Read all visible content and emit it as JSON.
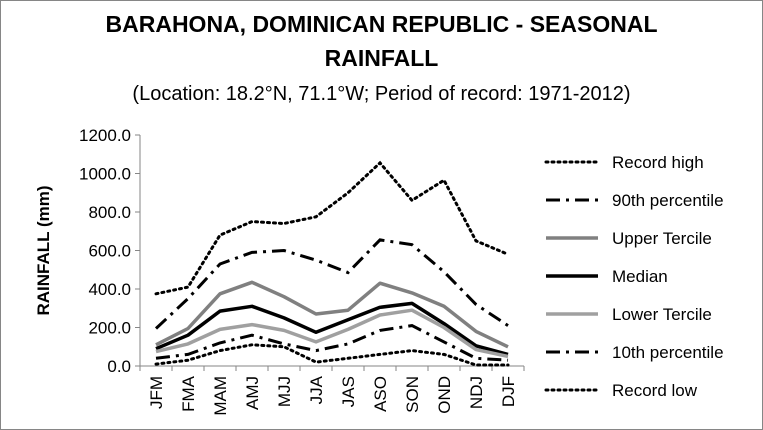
{
  "chart_data": {
    "type": "line",
    "title_lines": [
      "BARAHONA, DOMINICAN REPUBLIC - SEASONAL",
      "RAINFALL"
    ],
    "subtitle": "(Location: 18.2°N, 71.1°W; Period of record: 1971-2012)",
    "xlabel": "",
    "ylabel": "RAINFALL (mm)",
    "ylim": [
      0,
      1200
    ],
    "yticks": [
      "0.0",
      "200.0",
      "400.0",
      "600.0",
      "800.0",
      "1000.0",
      "1200.0"
    ],
    "grid": false,
    "legend_position": "right",
    "categories": [
      "JFM",
      "FMA",
      "MAM",
      "AMJ",
      "MJJ",
      "JJA",
      "JAS",
      "ASO",
      "SON",
      "OND",
      "NDJ",
      "DJF"
    ],
    "series": [
      {
        "name": "Record high",
        "style": "dotted",
        "color": "#000000",
        "values": [
          375,
          410,
          680,
          750,
          740,
          775,
          900,
          1055,
          860,
          965,
          650,
          580
        ]
      },
      {
        "name": "90th percentile",
        "style": "dash-dot",
        "color": "#000000",
        "values": [
          195,
          350,
          530,
          590,
          600,
          550,
          485,
          655,
          630,
          490,
          320,
          210
        ]
      },
      {
        "name": "Upper Tercile",
        "style": "solid",
        "color": "#808080",
        "values": [
          110,
          195,
          375,
          435,
          360,
          270,
          290,
          430,
          380,
          310,
          180,
          100
        ]
      },
      {
        "name": "Median",
        "style": "solid",
        "color": "#000000",
        "values": [
          90,
          160,
          285,
          310,
          250,
          175,
          240,
          305,
          325,
          220,
          105,
          60
        ]
      },
      {
        "name": "Lower Tercile",
        "style": "solid",
        "color": "#a0a0a0",
        "values": [
          75,
          115,
          190,
          215,
          185,
          125,
          190,
          265,
          290,
          200,
          85,
          50
        ]
      },
      {
        "name": "10th percentile",
        "style": "dash-dot",
        "color": "#000000",
        "values": [
          40,
          60,
          120,
          160,
          115,
          80,
          115,
          185,
          210,
          125,
          40,
          30
        ]
      },
      {
        "name": "Record low",
        "style": "dotted",
        "color": "#000000",
        "values": [
          10,
          30,
          80,
          110,
          100,
          20,
          40,
          60,
          80,
          60,
          5,
          5
        ]
      }
    ]
  }
}
